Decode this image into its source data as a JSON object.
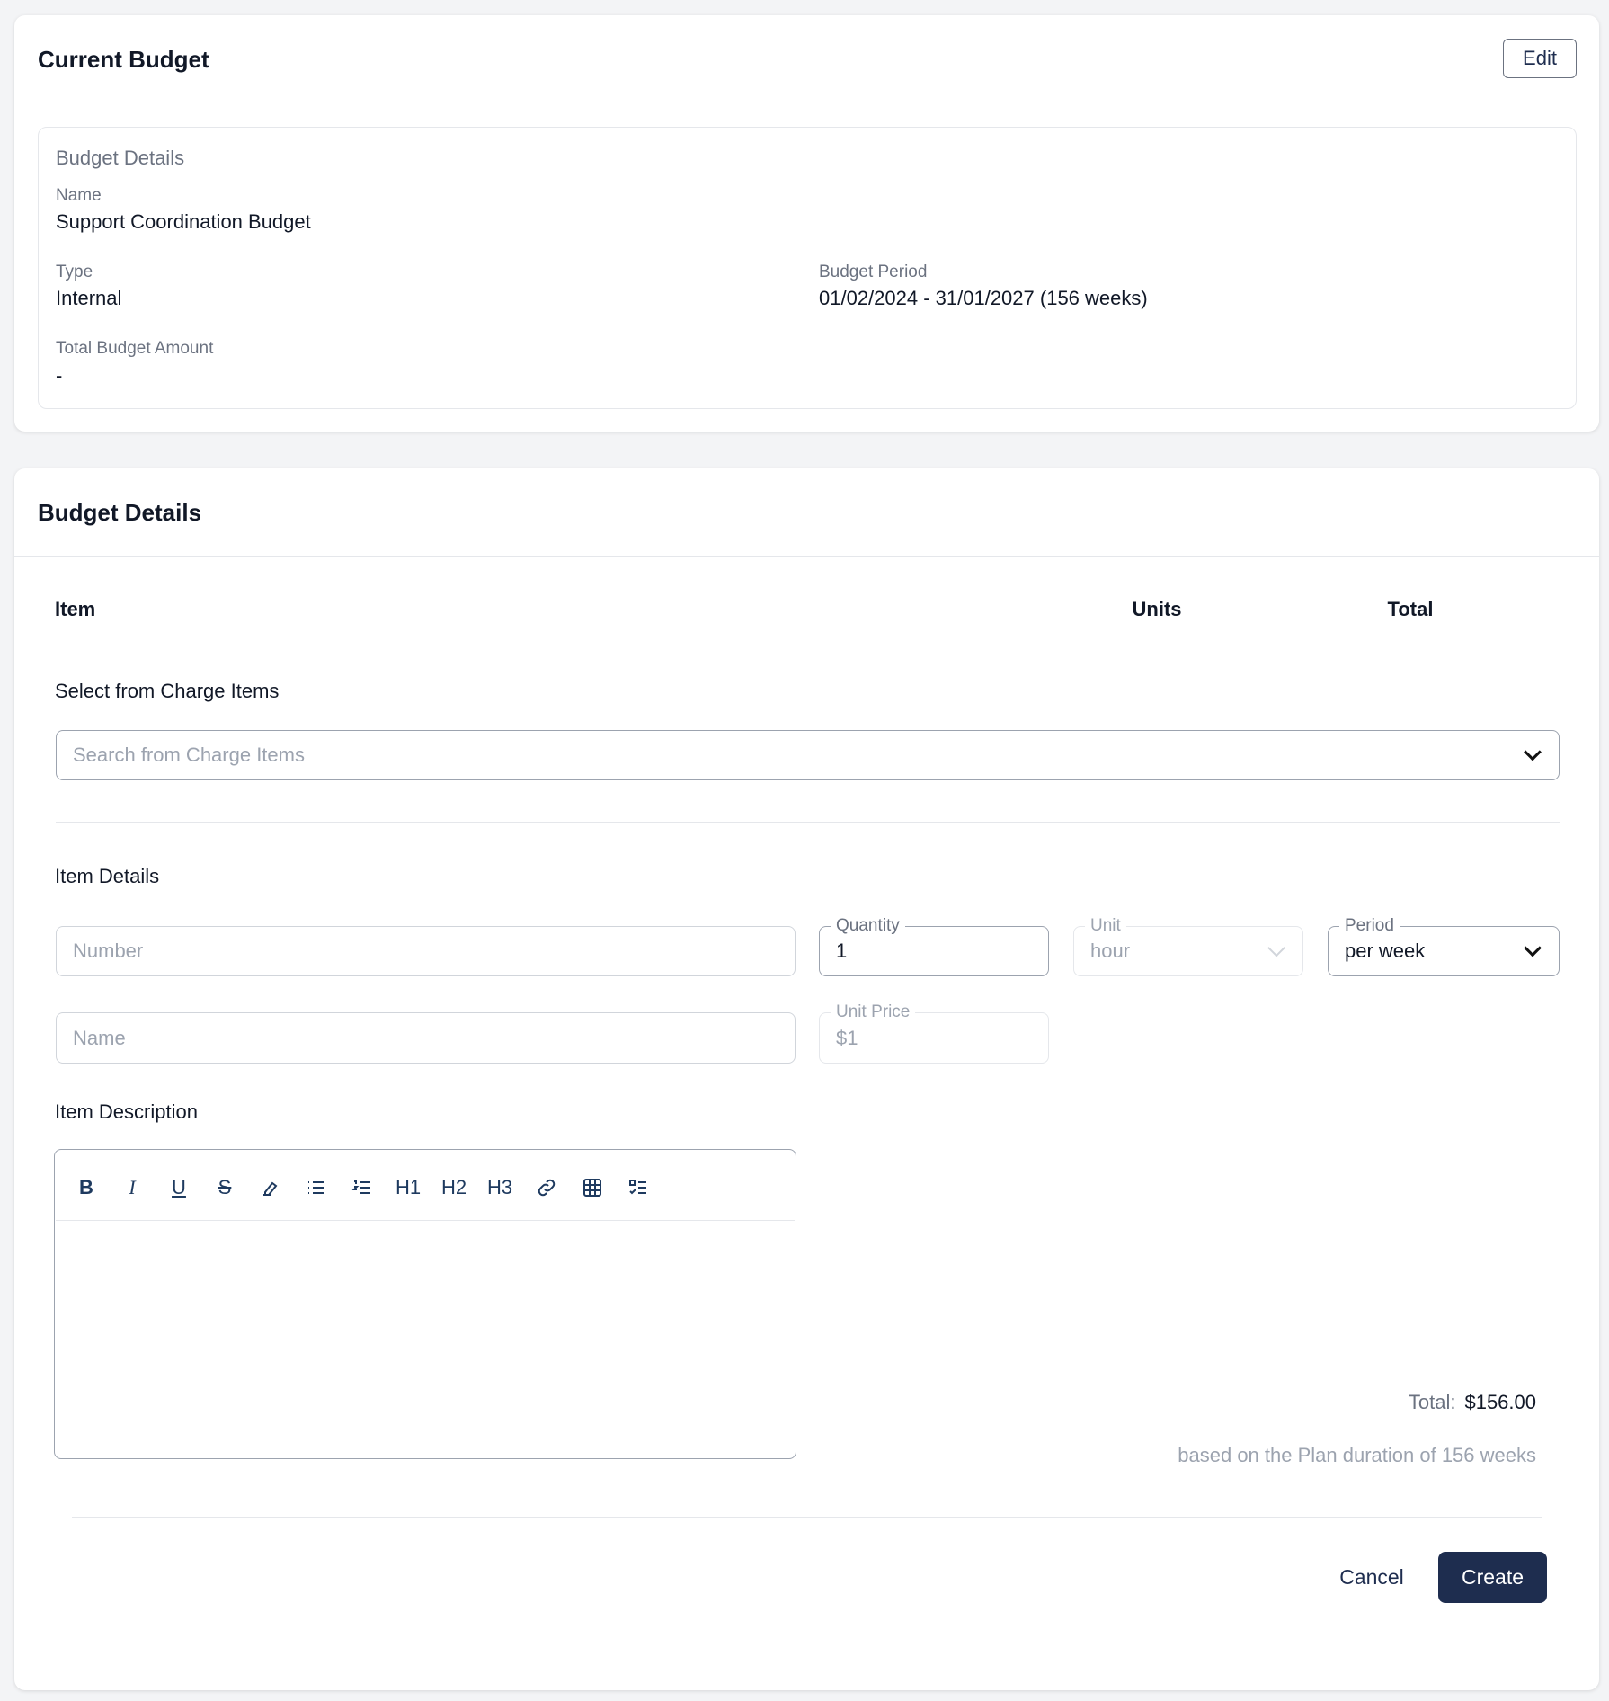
{
  "current_budget": {
    "title": "Current Budget",
    "edit_label": "Edit",
    "details": {
      "heading": "Budget Details",
      "name_label": "Name",
      "name_value": "Support Coordination Budget",
      "type_label": "Type",
      "type_value": "Internal",
      "period_label": "Budget Period",
      "period_value": "01/02/2024 - 31/01/2027 (156 weeks)",
      "amount_label": "Total Budget Amount",
      "amount_value": "-"
    }
  },
  "budget_details": {
    "title": "Budget Details",
    "columns": [
      "Item",
      "Units",
      "Total"
    ],
    "select_label": "Select from Charge Items",
    "search_placeholder": "Search from Charge Items",
    "item_details_label": "Item Details",
    "number_placeholder": "Number",
    "quantity_label": "Quantity",
    "quantity_value": "1",
    "unit_label": "Unit",
    "unit_value": "hour",
    "period_label": "Period",
    "period_value": "per week",
    "name_placeholder": "Name",
    "unit_price_label": "Unit Price",
    "unit_price_value": "$1",
    "description_label": "Item Description",
    "toolbar": {
      "h1": "H1",
      "h2": "H2",
      "h3": "H3"
    },
    "total_label": "Total:",
    "total_value": "$156.00",
    "total_note": "based on the Plan duration of 156 weeks",
    "cancel_label": "Cancel",
    "create_label": "Create"
  },
  "colors": {
    "primary": "#1e2d4f",
    "icon": "#1e3a5f"
  }
}
